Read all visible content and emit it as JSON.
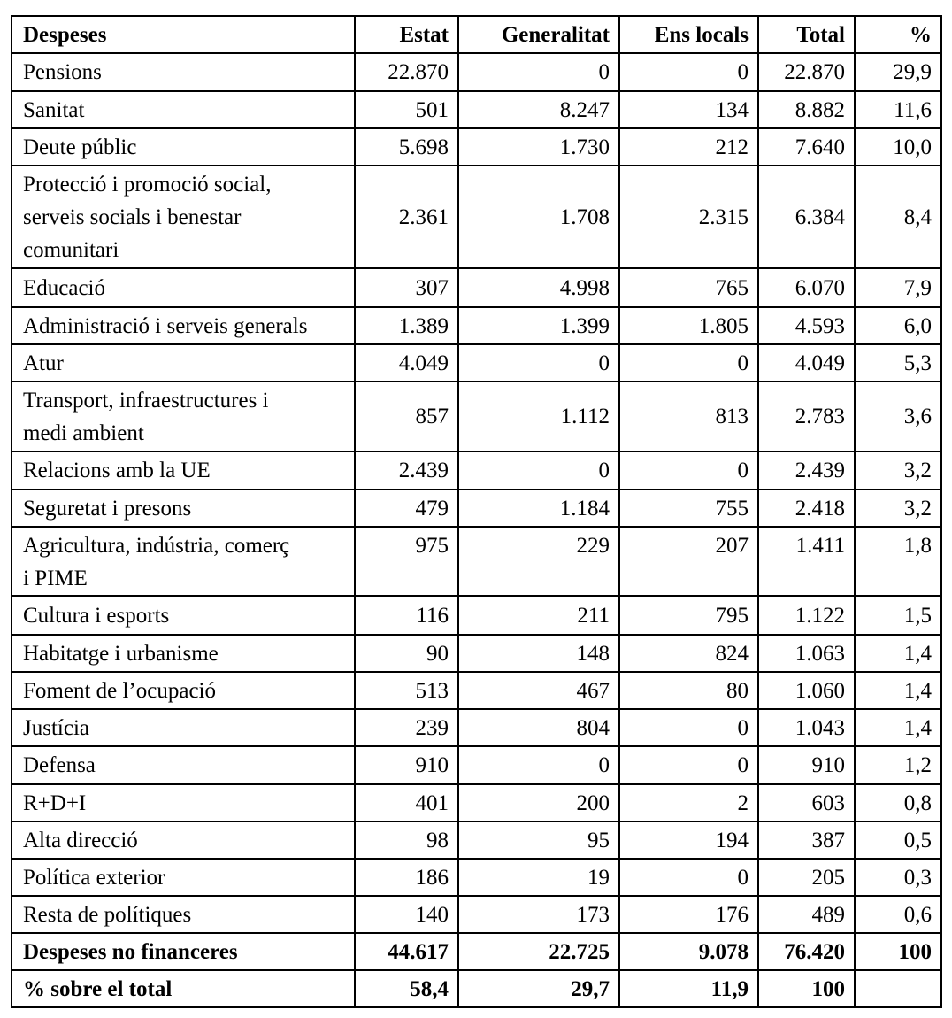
{
  "table": {
    "headers": [
      "Despeses",
      "Estat",
      "Generalitat",
      "Ens locals",
      "Total",
      "%"
    ],
    "rows": [
      [
        "Pensions",
        "22.870",
        "0",
        "0",
        "22.870",
        "29,9"
      ],
      [
        "Sanitat",
        "501",
        "8.247",
        "134",
        "8.882",
        "11,6"
      ],
      [
        "Deute públic",
        "5.698",
        "1.730",
        "212",
        "7.640",
        "10,0"
      ],
      [
        "Protecció i promoció social,\nserveis socials i benestar\ncomunitari",
        "2.361",
        "1.708",
        "2.315",
        "6.384",
        "8,4"
      ],
      [
        "Educació",
        "307",
        "4.998",
        "765",
        "6.070",
        "7,9"
      ],
      [
        "Administració i serveis generals",
        "1.389",
        "1.399",
        "1.805",
        "4.593",
        "6,0"
      ],
      [
        "Atur",
        "4.049",
        "0",
        "0",
        "4.049",
        "5,3"
      ],
      [
        "Transport, infraestructures i\nmedi ambient",
        "857",
        "1.112",
        "813",
        "2.783",
        "3,6"
      ],
      [
        "Relacions amb la UE",
        "2.439",
        "0",
        "0",
        "2.439",
        "3,2"
      ],
      [
        "Seguretat i presons",
        "479",
        "1.184",
        "755",
        "2.418",
        "3,2"
      ],
      [
        "Agricultura, indústria, comerç\ni PIME",
        "975",
        "229",
        "207",
        "1.411",
        "1,8"
      ],
      [
        "Cultura i esports",
        "116",
        "211",
        "795",
        "1.122",
        "1,5"
      ],
      [
        "Habitatge i urbanisme",
        "90",
        "148",
        "824",
        "1.063",
        "1,4"
      ],
      [
        "Foment de l’ocupació",
        "513",
        "467",
        "80",
        "1.060",
        "1,4"
      ],
      [
        "Justícia",
        "239",
        "804",
        "0",
        "1.043",
        "1,4"
      ],
      [
        "Defensa",
        "910",
        "0",
        "0",
        "910",
        "1,2"
      ],
      [
        "R+D+I",
        "401",
        "200",
        "2",
        "603",
        "0,8"
      ],
      [
        "Alta direcció",
        "98",
        "95",
        "194",
        "387",
        "0,5"
      ],
      [
        "Política exterior",
        "186",
        "19",
        "0",
        "205",
        "0,3"
      ],
      [
        "Resta de polítiques",
        "140",
        "173",
        "176",
        "489",
        "0,6"
      ]
    ],
    "totals": [
      [
        "Despeses no financeres",
        "44.617",
        "22.725",
        "9.078",
        "76.420",
        "100"
      ],
      [
        "% sobre el total",
        "58,4",
        "29,7",
        "11,9",
        "100",
        ""
      ]
    ]
  }
}
